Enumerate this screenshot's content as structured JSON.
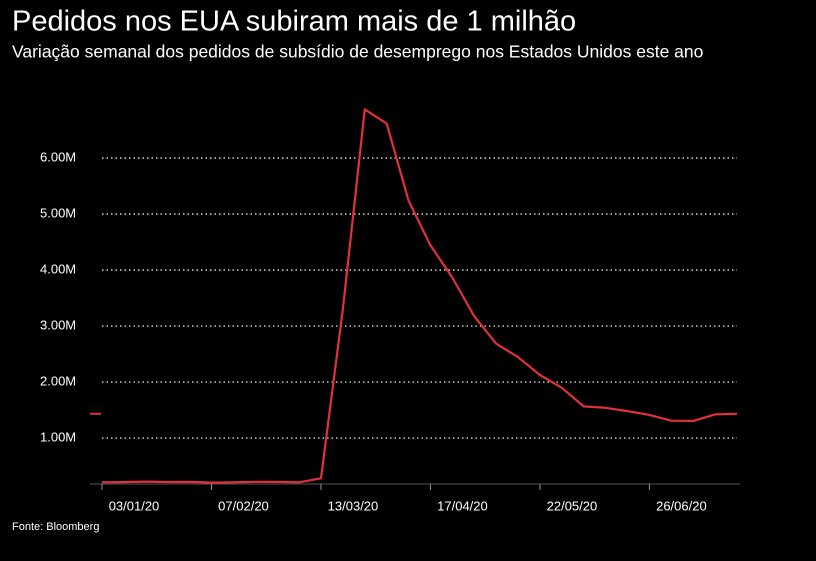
{
  "chart_data": {
    "type": "line",
    "title": "Pedidos nos EUA subiram mais de 1 milhão",
    "subtitle": "Variação semanal dos pedidos de subsídio de desemprego nos Estados Unidos este ano",
    "source": "Fonte: Bloomberg",
    "categories": [
      "03/01/20",
      null,
      null,
      null,
      null,
      "07/02/20",
      null,
      null,
      null,
      null,
      "13/03/20",
      null,
      null,
      null,
      null,
      "17/04/20",
      null,
      null,
      null,
      null,
      "22/05/20",
      null,
      null,
      null,
      null,
      "26/06/20",
      null,
      null,
      null,
      null
    ],
    "values": [
      211000,
      214000,
      223000,
      215000,
      217000,
      205000,
      211000,
      219000,
      217000,
      211000,
      282000,
      3307000,
      6867000,
      6615000,
      5237000,
      4442000,
      3867000,
      3176000,
      2687000,
      2446000,
      2126000,
      1897000,
      1566000,
      1540000,
      1482000,
      1413000,
      1310000,
      1307000,
      1422000,
      1434000
    ],
    "color": "#e0313c",
    "ylim": [
      180000,
      7000000
    ],
    "yticks": [
      {
        "value": 1000000,
        "label": "1.00M"
      },
      {
        "value": 2000000,
        "label": "2.00M"
      },
      {
        "value": 3000000,
        "label": "3.00M"
      },
      {
        "value": 4000000,
        "label": "4.00M"
      },
      {
        "value": 5000000,
        "label": "5.00M"
      },
      {
        "value": 6000000,
        "label": "6.00M"
      }
    ],
    "grid": true
  }
}
